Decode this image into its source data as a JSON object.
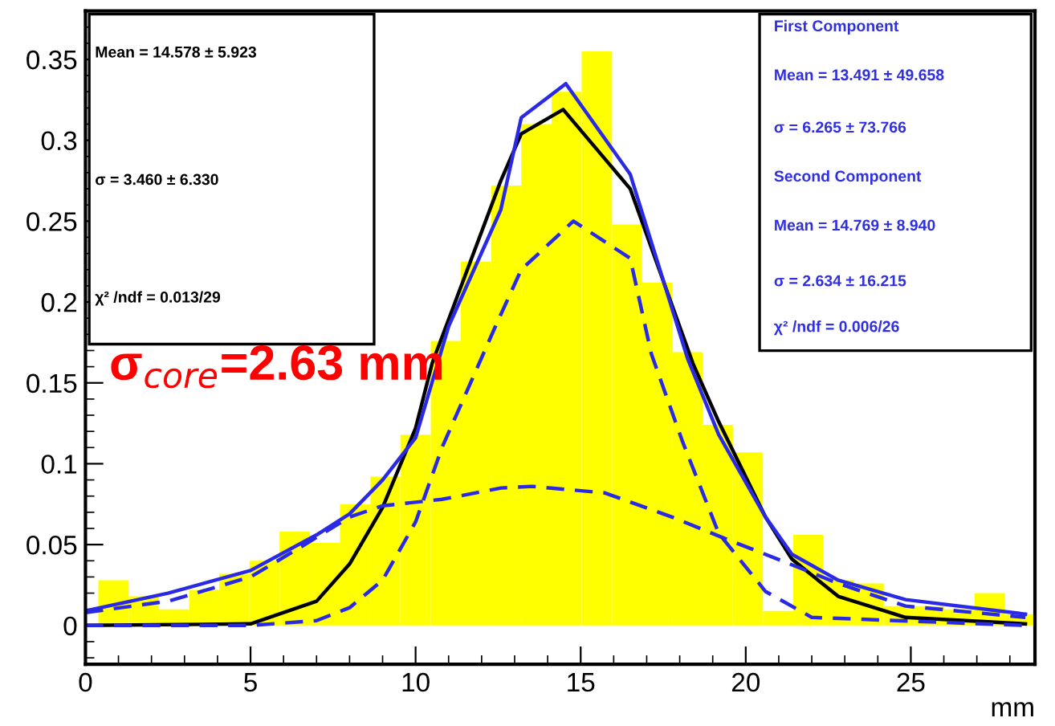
{
  "chart_data": {
    "type": "histogram",
    "xlabel": "mm",
    "bins": [
      0.39,
      1.31,
      2.22,
      3.14,
      4.05,
      4.97,
      5.88,
      6.8,
      7.71,
      8.63,
      9.54,
      10.46,
      11.37,
      12.29,
      13.2,
      14.12,
      15.03,
      15.95,
      16.86,
      17.78,
      18.69,
      19.61,
      20.52,
      21.44,
      22.35,
      23.27,
      24.18,
      25.1,
      26.01,
      26.93,
      27.84,
      28.76
    ],
    "values": [
      0.028,
      0.018,
      0.01,
      0.022,
      0.032,
      0.04,
      0.058,
      0.051,
      0.075,
      0.092,
      0.118,
      0.176,
      0.225,
      0.272,
      0.31,
      0.33,
      0.355,
      0.248,
      0.212,
      0.169,
      0.124,
      0.107,
      0.009,
      0.056,
      0.028,
      0.026,
      0.012,
      0.012,
      0.01,
      0.02,
      0.007
    ],
    "color": "#ffff00",
    "series": [
      {
        "type": "line",
        "color": "#000000",
        "line_style": "solid",
        "x": [
          0,
          5,
          7,
          8,
          9,
          10,
          10.5,
          12.58,
          13.2,
          14.47,
          16.5,
          18.4,
          19.18,
          20.6,
          21.4,
          22.8,
          24.84,
          28.47
        ],
        "values": [
          0.0,
          0.001,
          0.015,
          0.038,
          0.073,
          0.122,
          0.162,
          0.275,
          0.304,
          0.319,
          0.27,
          0.162,
          0.126,
          0.067,
          0.041,
          0.018,
          0.005,
          0.001
        ]
      },
      {
        "type": "line",
        "color": "#2a2ae6",
        "line_style": "solid",
        "x": [
          0,
          2.5,
          5,
          7,
          8,
          9,
          10,
          11.0,
          12.58,
          13.2,
          14.55,
          16.5,
          18.24,
          19.18,
          20.6,
          21.4,
          22.8,
          24.84,
          28.47
        ],
        "values": [
          0.009,
          0.02,
          0.034,
          0.056,
          0.069,
          0.09,
          0.116,
          0.185,
          0.257,
          0.314,
          0.335,
          0.279,
          0.165,
          0.118,
          0.067,
          0.044,
          0.028,
          0.016,
          0.007
        ]
      },
      {
        "type": "line",
        "color": "#2a2ae6",
        "line_style": "dashed",
        "x": [
          0,
          5,
          7,
          8,
          9,
          10,
          10.8,
          12.42,
          13.2,
          14.78,
          16.5,
          17.14,
          18.08,
          19.18,
          20.6,
          22.0,
          28.47
        ],
        "values": [
          0.0,
          0.0,
          0.003,
          0.011,
          0.028,
          0.064,
          0.11,
          0.185,
          0.22,
          0.25,
          0.227,
          0.168,
          0.114,
          0.057,
          0.021,
          0.005,
          0.0
        ]
      },
      {
        "type": "line",
        "color": "#2a2ae6",
        "line_style": "dashed",
        "x": [
          0,
          2.5,
          5,
          6.4,
          8,
          9,
          10.8,
          12.59,
          13.52,
          15.72,
          17.77,
          19.34,
          21.22,
          22.8,
          24.84,
          28.47
        ],
        "values": [
          0.008,
          0.015,
          0.03,
          0.047,
          0.067,
          0.074,
          0.078,
          0.085,
          0.086,
          0.082,
          0.067,
          0.054,
          0.039,
          0.026,
          0.012,
          0.005
        ]
      }
    ],
    "xlim": [
      0,
      28.76
    ],
    "ylim": [
      -0.024,
      0.38
    ],
    "xticks": [
      0,
      5,
      10,
      15,
      20,
      25
    ],
    "yticks": [
      0,
      0.05,
      0.1,
      0.15,
      0.2,
      0.25,
      0.3,
      0.35
    ],
    "grid": false,
    "legend": false,
    "annotations": [
      "Mean = 14.578 ± 5.923",
      "σ = 3.460 ± 6.330",
      "χ² /ndf = 0.013/29",
      "First Component",
      "Mean = 13.491 ± 49.658",
      "σ = 6.265 ± 73.766",
      "Second Component",
      "Mean = 14.769 ± 8.940",
      "σ = 2.634 ± 16.215",
      "χ² /ndf = 0.006/26",
      "σ$_{core}$=2.63 mm"
    ]
  }
}
